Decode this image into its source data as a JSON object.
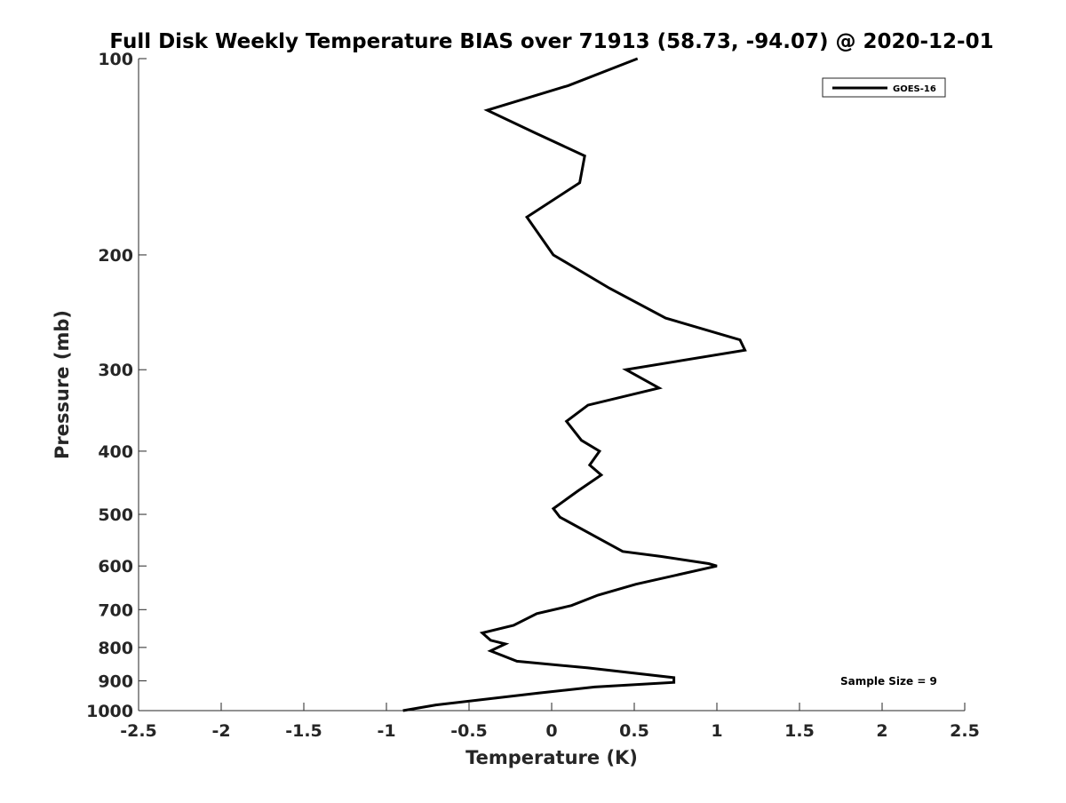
{
  "chart_data": {
    "type": "line",
    "title": "Full Disk Weekly Temperature BIAS over 71913 (58.73, -94.07) @ 2020-12-01",
    "xlabel": "Temperature (K)",
    "ylabel": "Pressure (mb)",
    "xlim": [
      -2.5,
      2.5
    ],
    "ylim": [
      1000,
      100
    ],
    "y_scale": "log",
    "y_reversed": true,
    "x_ticks": [
      -2.5,
      -2,
      -1.5,
      -1,
      -0.5,
      0,
      0.5,
      1,
      1.5,
      2,
      2.5
    ],
    "x_tick_labels": [
      "-2.5",
      "-2",
      "-1.5",
      "-1",
      "-0.5",
      "0",
      "0.5",
      "1",
      "1.5",
      "2",
      "2.5"
    ],
    "y_ticks": [
      100,
      200,
      300,
      400,
      500,
      600,
      700,
      800,
      900,
      1000
    ],
    "y_tick_labels": [
      "100",
      "200",
      "300",
      "400",
      "500",
      "600",
      "700",
      "800",
      "900",
      "1000"
    ],
    "grid": false,
    "legend_position": "top-right",
    "series": [
      {
        "name": "GOES-16",
        "color": "#000000",
        "x": [
          0.52,
          0.1,
          -0.39,
          -0.1,
          0.2,
          0.17,
          -0.15,
          0.01,
          0.35,
          0.69,
          1.14,
          1.17,
          0.45,
          0.65,
          0.22,
          0.09,
          0.18,
          0.29,
          0.23,
          0.3,
          0.16,
          0.01,
          0.05,
          0.26,
          0.43,
          0.66,
          0.95,
          1.0,
          0.51,
          0.28,
          0.12,
          -0.09,
          -0.23,
          -0.42,
          -0.37,
          -0.28,
          -0.37,
          -0.21,
          0.22,
          0.74,
          0.74,
          0.26,
          -0.08,
          -0.7,
          -0.9
        ],
        "y": [
          100,
          110,
          120,
          130,
          141,
          155,
          175,
          200,
          225,
          250,
          270,
          280,
          300,
          320,
          340,
          360,
          385,
          400,
          420,
          435,
          460,
          490,
          505,
          540,
          570,
          580,
          595,
          600,
          640,
          665,
          690,
          710,
          740,
          760,
          780,
          790,
          810,
          840,
          860,
          890,
          905,
          920,
          940,
          980,
          1000
        ]
      }
    ],
    "annotations": [
      "Sample Size = 9"
    ]
  }
}
